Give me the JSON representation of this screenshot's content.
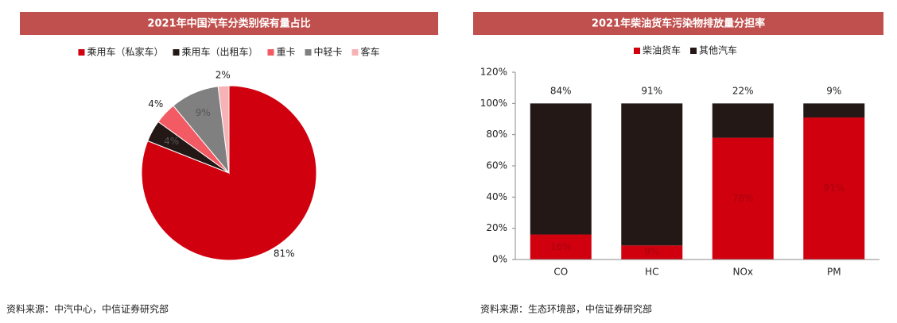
{
  "chart_data": [
    {
      "type": "pie",
      "title": "2021年中国汽车分类别保有量占比",
      "categories": [
        "乘用车（私家车）",
        "乘用车（出租车）",
        "重卡",
        "中轻卡",
        "客车"
      ],
      "values": [
        81,
        4,
        4,
        9,
        2
      ],
      "value_labels": [
        "81%",
        "4%",
        "4%",
        "9%",
        "2%"
      ],
      "colors": [
        "#d0000f",
        "#231815",
        "#f25a64",
        "#808080",
        "#f6b3b5"
      ],
      "source": "资料来源：中汽中心，中信证券研究部"
    },
    {
      "type": "stacked_bar",
      "title": "2021年柴油货车污染物排放量分担率",
      "categories": [
        "CO",
        "HC",
        "NOx",
        "PM"
      ],
      "series": [
        {
          "name": "柴油货车",
          "color": "#d0000f",
          "values": [
            16,
            9,
            78,
            91
          ],
          "value_labels": [
            "16%",
            "9%",
            "78%",
            "91%"
          ]
        },
        {
          "name": "其他汽车",
          "color": "#231815",
          "values": [
            84,
            91,
            22,
            9
          ],
          "value_labels": [
            "84%",
            "91%",
            "22%",
            "9%"
          ]
        }
      ],
      "ylim": [
        0,
        120
      ],
      "yticks": [
        {
          "value": 0,
          "label": "0%"
        },
        {
          "value": 20,
          "label": "20%"
        },
        {
          "value": 40,
          "label": "40%"
        },
        {
          "value": 60,
          "label": "60%"
        },
        {
          "value": 80,
          "label": "80%"
        },
        {
          "value": 100,
          "label": "100%"
        },
        {
          "value": 120,
          "label": "120%"
        }
      ],
      "source": "资料来源：生态环境部，中信证券研究部"
    }
  ]
}
